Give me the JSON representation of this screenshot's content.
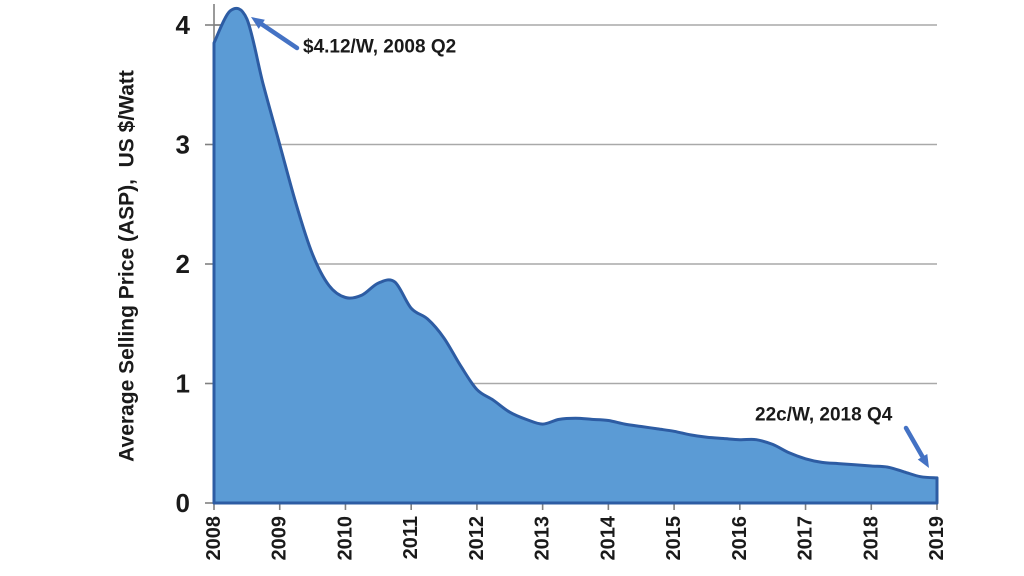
{
  "chart_data": {
    "type": "area",
    "title": "",
    "xlabel": "",
    "ylabel": "Average Selling Price (ASP),  US $/Watt",
    "x_tick_labels": [
      "2008",
      "2009",
      "2010",
      "2011",
      "2012",
      "2013",
      "2014",
      "2015",
      "2016",
      "2017",
      "2018",
      "2019"
    ],
    "y_tick_labels": [
      "0",
      "1",
      "2",
      "3",
      "4"
    ],
    "y_ticks": [
      0,
      1,
      2,
      3,
      4
    ],
    "ylim": [
      0,
      4.3
    ],
    "grid": "horizontal",
    "legend": "none",
    "series": [
      {
        "name": "Average Selling Price (ASP)",
        "x": [
          "2008 Q1",
          "2008 Q2",
          "2008 Q3",
          "2008 Q4",
          "2009 Q1",
          "2009 Q2",
          "2009 Q3",
          "2009 Q4",
          "2010 Q1",
          "2010 Q2",
          "2010 Q3",
          "2010 Q4",
          "2011 Q1",
          "2011 Q2",
          "2011 Q3",
          "2011 Q4",
          "2012 Q1",
          "2012 Q2",
          "2012 Q3",
          "2012 Q4",
          "2013 Q1",
          "2013 Q2",
          "2013 Q3",
          "2013 Q4",
          "2014 Q1",
          "2014 Q2",
          "2014 Q3",
          "2014 Q4",
          "2015 Q1",
          "2015 Q2",
          "2015 Q3",
          "2015 Q4",
          "2016 Q1",
          "2016 Q2",
          "2016 Q3",
          "2016 Q4",
          "2017 Q1",
          "2017 Q2",
          "2017 Q3",
          "2017 Q4",
          "2018 Q1",
          "2018 Q2",
          "2018 Q3",
          "2018 Q4",
          "2019 Q1"
        ],
        "values": [
          3.85,
          4.12,
          4.05,
          3.5,
          3.0,
          2.5,
          2.08,
          1.82,
          1.72,
          1.74,
          1.84,
          1.85,
          1.63,
          1.54,
          1.38,
          1.15,
          0.95,
          0.86,
          0.76,
          0.7,
          0.66,
          0.7,
          0.71,
          0.7,
          0.69,
          0.66,
          0.64,
          0.62,
          0.6,
          0.57,
          0.55,
          0.54,
          0.53,
          0.53,
          0.49,
          0.42,
          0.37,
          0.34,
          0.33,
          0.32,
          0.31,
          0.3,
          0.26,
          0.22,
          0.21
        ]
      }
    ],
    "annotations": [
      {
        "text": "$4.12/W, 2008 Q2",
        "quarter": "2008 Q2",
        "value_usd_per_watt": 4.12
      },
      {
        "text": "22c/W, 2018 Q4",
        "quarter": "2018 Q4",
        "value_usd_per_watt": 0.22
      }
    ],
    "colors": {
      "area_fill": "#5b9bd5",
      "area_stroke": "#2d5ca3",
      "gridline": "#a9a9a9",
      "axis": "#808080",
      "arrow": "#4472c4",
      "text": "#1a1a1a"
    }
  }
}
